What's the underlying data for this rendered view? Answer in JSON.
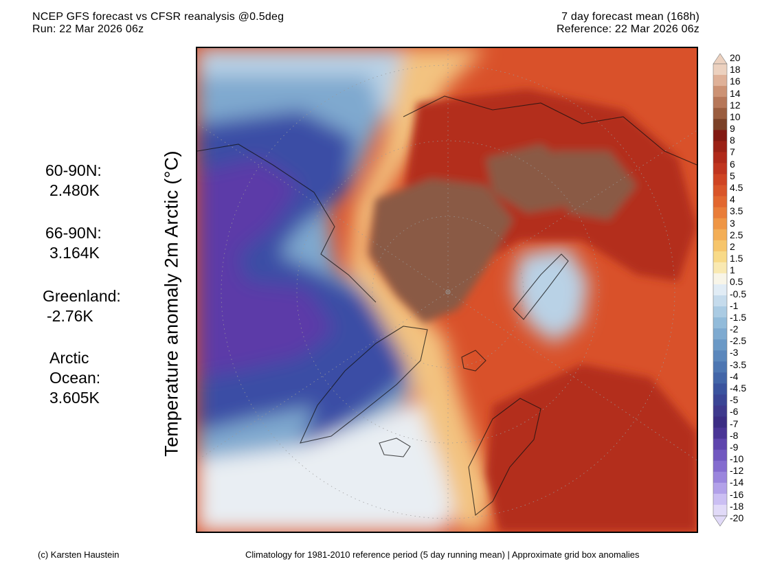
{
  "header": {
    "title_line1": "NCEP GFS forecast vs CFSR reanalysis @0.5deg",
    "title_line2": "Run: 22 Mar 2026 06z",
    "right_line1": "7 day forecast mean (168h)",
    "right_line2": "Reference: 22 Mar 2026 06z"
  },
  "vertical_title": "Temperature anomaly 2m Arctic (°C)",
  "stats": [
    {
      "label": "60-90N:",
      "value": "2.480K"
    },
    {
      "label": "66-90N:",
      "value": "3.164K"
    },
    {
      "label": "Greenland:",
      "value": "-2.76K"
    },
    {
      "label": "Arctic",
      "label2": "Ocean:",
      "value": "3.605K"
    }
  ],
  "colorbar": {
    "labels": [
      "20",
      "18",
      "16",
      "14",
      "12",
      "10",
      "9",
      "8",
      "7",
      "6",
      "5",
      "4.5",
      "4",
      "3.5",
      "3",
      "2.5",
      "2",
      "1.5",
      "1",
      "0.5",
      "-0.5",
      "-1",
      "-1.5",
      "-2",
      "-2.5",
      "-3",
      "-3.5",
      "-4",
      "-4.5",
      "-5",
      "-6",
      "-7",
      "-8",
      "-9",
      "-10",
      "-12",
      "-14",
      "-16",
      "-18",
      "-20"
    ],
    "colors": [
      "#ecd1bf",
      "#dfb198",
      "#cc9274",
      "#b67759",
      "#9a5d3f",
      "#7b4128",
      "#821a12",
      "#9b2216",
      "#b02a1a",
      "#c0351f",
      "#cf4423",
      "#d95529",
      "#e2672f",
      "#e97d39",
      "#ef9645",
      "#f3ae56",
      "#f6c56b",
      "#f8da88",
      "#f9e9b2",
      "#f8f5e8",
      "#e1ecf5",
      "#c5dbec",
      "#aacbe3",
      "#92bbda",
      "#7eaad0",
      "#6b99c6",
      "#5b87bc",
      "#4d76b2",
      "#4265a8",
      "#3a539e",
      "#3a4595",
      "#3e398d",
      "#3b2d84",
      "#4a3596",
      "#5e45ad",
      "#7158c0",
      "#846ccf",
      "#9a85dd",
      "#b2a1e9",
      "#cbbff3",
      "#e1daf8"
    ],
    "top_cap_color": "#ecd1bf",
    "bottom_cap_color": "#e1daf8"
  },
  "footer": {
    "left": "(c) Karsten Haustein",
    "right": "Climatology for 1981-2010 reference period (5 day running mean) | Approximate grid box anomalies"
  },
  "map_colors": {
    "cold_deep": "#5b3aa8",
    "cold": "#3a4da5",
    "cool": "#7fa9cf",
    "cool_light": "#b9d2e6",
    "near_zero": "#e9eef3",
    "mild": "#f3c380",
    "warm": "#d9512a",
    "hot": "#b32d1b",
    "hottest": "#8a5a44"
  }
}
